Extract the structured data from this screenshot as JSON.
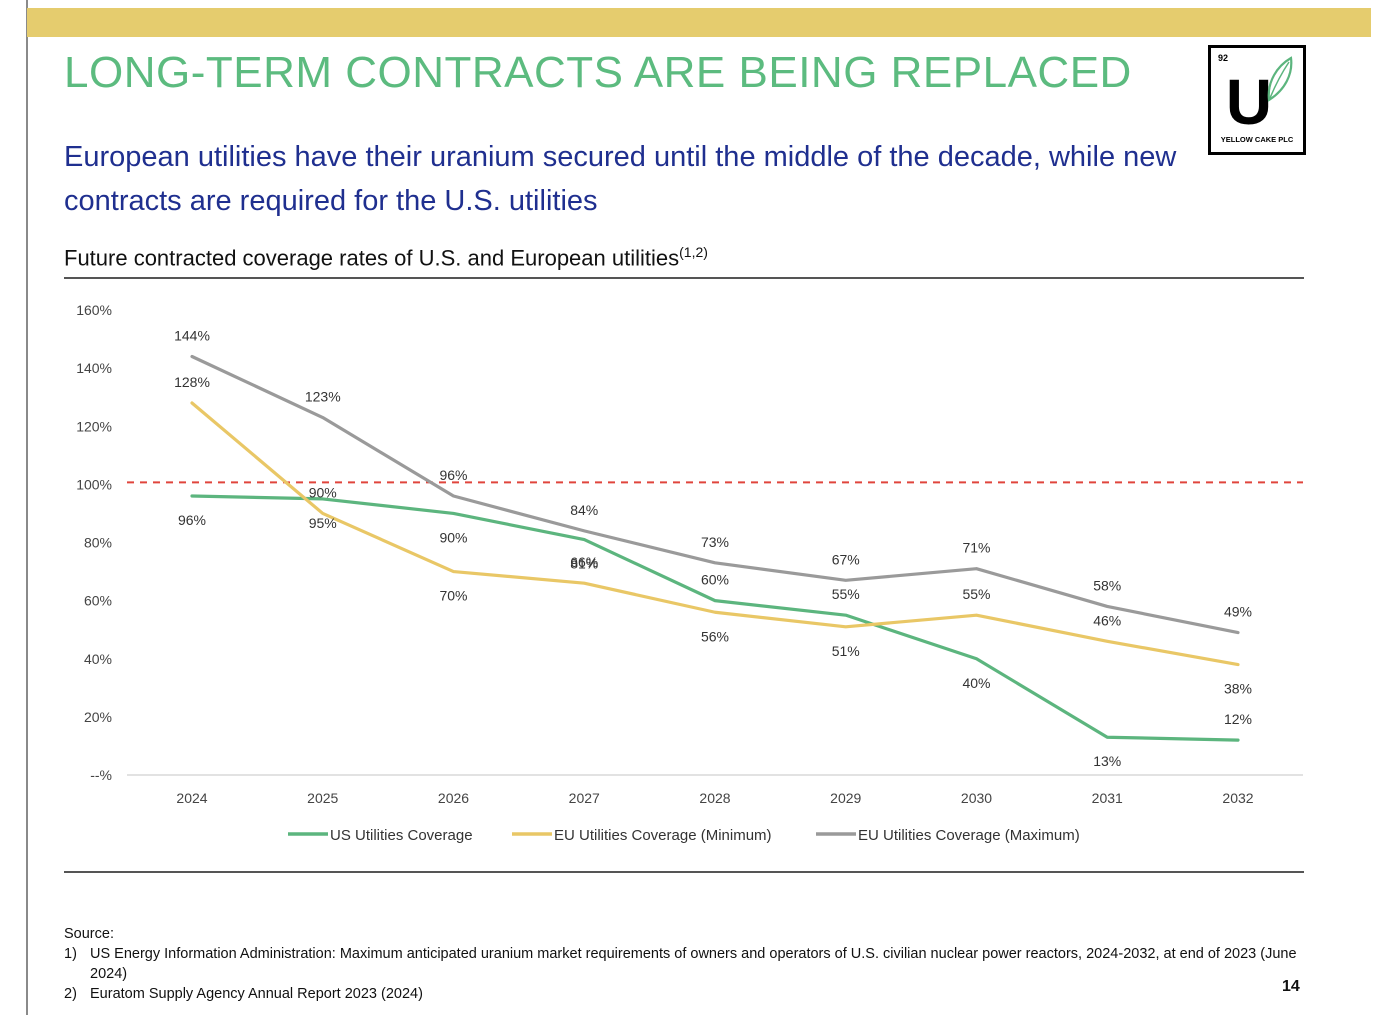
{
  "header": {
    "title": "LONG-TERM CONTRACTS ARE BEING REPLACED",
    "subtitle": "European utilities have their uranium secured until the middle of the decade, while new contracts are required for the U.S. utilities"
  },
  "logo": {
    "number": "92",
    "letter": "U",
    "name": "YELLOW CAKE PLC"
  },
  "chart_heading": {
    "text": "Future contracted coverage rates of U.S. and European utilities",
    "superscript": "(1,2)"
  },
  "chart_data": {
    "type": "line",
    "title": "Future contracted coverage rates of U.S. and European utilities",
    "x": [
      "2024",
      "2025",
      "2026",
      "2027",
      "2028",
      "2029",
      "2030",
      "2031",
      "2032"
    ],
    "yticks": [
      "160%",
      "140%",
      "120%",
      "100%",
      "80%",
      "60%",
      "40%",
      "20%",
      "--%"
    ],
    "ylim": [
      0,
      160
    ],
    "reference_line": {
      "value": 100,
      "style": "dashed",
      "color": "#e0453c"
    },
    "series": [
      {
        "name": "US Utilities Coverage",
        "color": "#5cb57e",
        "values": [
          96,
          95,
          90,
          81,
          60,
          55,
          40,
          13,
          12
        ]
      },
      {
        "name": "EU Utilities Coverage (Minimum)",
        "color": "#e9c766",
        "values": [
          128,
          90,
          70,
          66,
          56,
          51,
          55,
          46,
          38
        ]
      },
      {
        "name": "EU Utilities Coverage (Maximum)",
        "color": "#9a9a9a",
        "values": [
          144,
          123,
          96,
          84,
          73,
          67,
          71,
          58,
          49
        ]
      }
    ],
    "data_labels": {
      "US Utilities Coverage": [
        "96%",
        "95%",
        "90%",
        "81%",
        "60%",
        "55%",
        "40%",
        "13%",
        "12%"
      ],
      "EU Utilities Coverage (Minimum)": [
        "128%",
        "90%",
        "70%",
        "66%",
        "56%",
        "51%",
        "55%",
        "46%",
        "38%"
      ],
      "EU Utilities Coverage (Maximum)": [
        "144%",
        "123%",
        "96%",
        "84%",
        "73%",
        "67%",
        "71%",
        "58%",
        "49%"
      ]
    },
    "legend": "bottom"
  },
  "source": {
    "title": "Source:",
    "items": [
      {
        "num": "1)",
        "text": "US Energy Information Administration: Maximum anticipated uranium market requirements of owners and operators of U.S. civilian nuclear power reactors, 2024-2032, at end of 2023 (June 2024)"
      },
      {
        "num": "2)",
        "text": "Euratom Supply Agency Annual Report 2023 (2024)"
      }
    ]
  },
  "page_number": "14"
}
